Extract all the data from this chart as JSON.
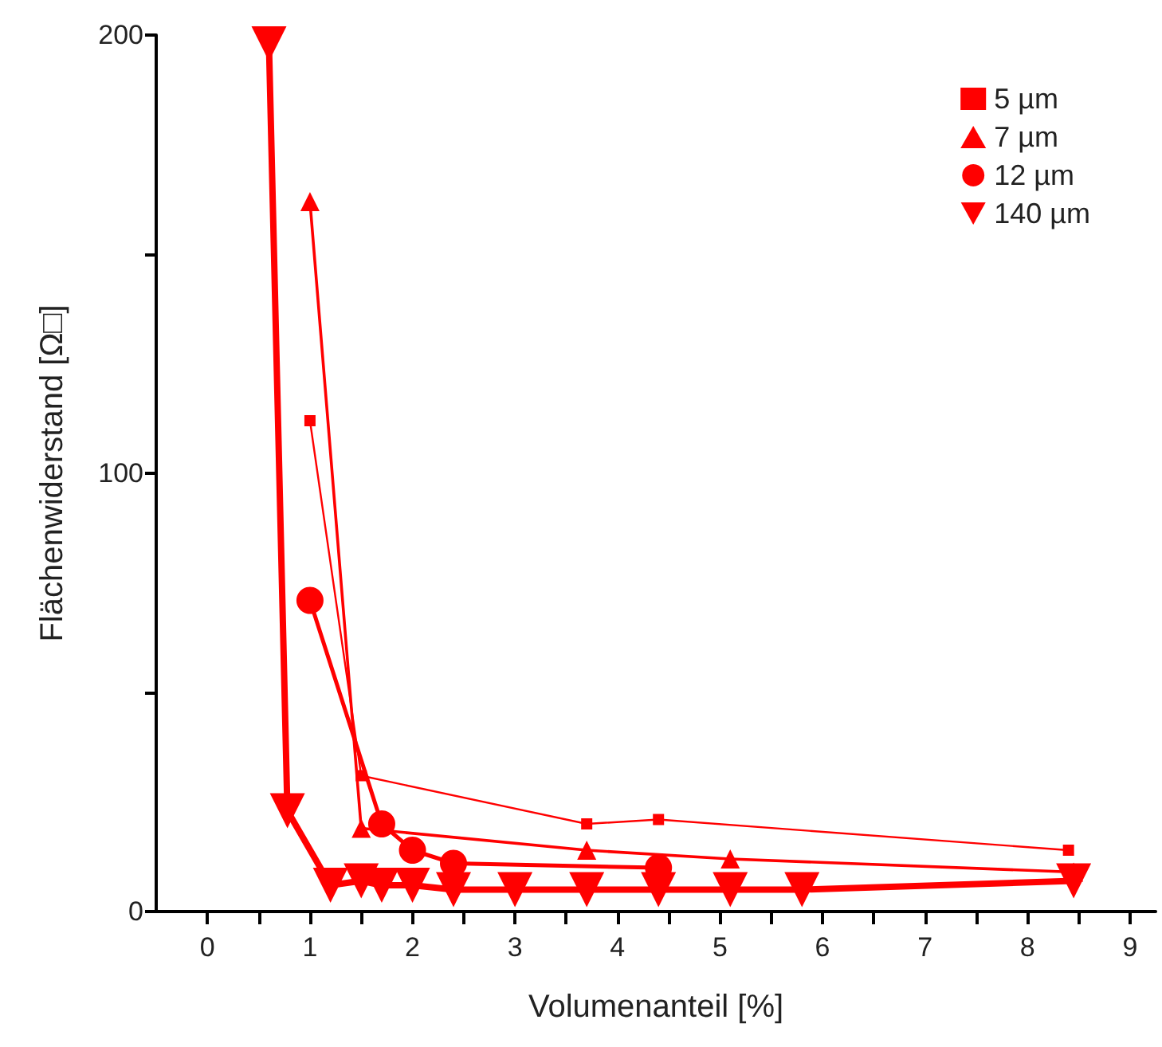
{
  "chart_data": {
    "type": "line",
    "xlabel": "Volumenanteil [%]",
    "ylabel": "Flächenwiderstand [Ω□]",
    "xlim": [
      -0.5,
      9.25
    ],
    "xticks": [
      0,
      {
        "value": 0.5,
        "label": null
      },
      1,
      {
        "value": 1.5,
        "label": null
      },
      2,
      {
        "value": 2.5,
        "label": null
      },
      3,
      {
        "value": 3.5,
        "label": null
      },
      4,
      {
        "value": 4.5,
        "label": null
      },
      5,
      {
        "value": 5.5,
        "label": null
      },
      6,
      {
        "value": 6.5,
        "label": null
      },
      7,
      {
        "value": 7.5,
        "label": null
      },
      8,
      {
        "value": 8.5,
        "label": null
      },
      9
    ],
    "ylim": [
      0,
      200
    ],
    "yticks": [
      0,
      {
        "value": 50,
        "label": null
      },
      100,
      {
        "value": 150,
        "label": null
      },
      200
    ],
    "grid": false,
    "legend": "top right",
    "line_style": "solid",
    "series": [
      {
        "name": "5 µm",
        "color": "#ff0000",
        "marker": "square",
        "x": [
          1.0,
          1.5,
          3.7,
          4.4,
          8.4
        ],
        "values": [
          112,
          31,
          20,
          21,
          14
        ]
      },
      {
        "name": "7 µm",
        "color": "#ff0000",
        "marker": "triangle",
        "x": [
          1.0,
          1.5,
          3.7,
          5.1,
          8.45
        ],
        "values": [
          162,
          19,
          14,
          12,
          9
        ]
      },
      {
        "name": "12 µm",
        "color": "#ff0000",
        "marker": "circle",
        "x": [
          1.0,
          1.7,
          2.0,
          2.4,
          4.4
        ],
        "values": [
          71,
          20,
          14,
          11,
          10
        ]
      },
      {
        "name": "140 µm",
        "color": "#ff0000",
        "marker": "triangle-down",
        "x": [
          0.6,
          0.78,
          1.2,
          1.5,
          1.7,
          2.0,
          2.4,
          3.0,
          3.7,
          4.4,
          5.1,
          5.8,
          8.45
        ],
        "values": [
          198,
          23,
          6,
          7,
          6,
          6,
          5,
          5,
          5,
          5,
          5,
          5,
          7
        ]
      }
    ]
  }
}
